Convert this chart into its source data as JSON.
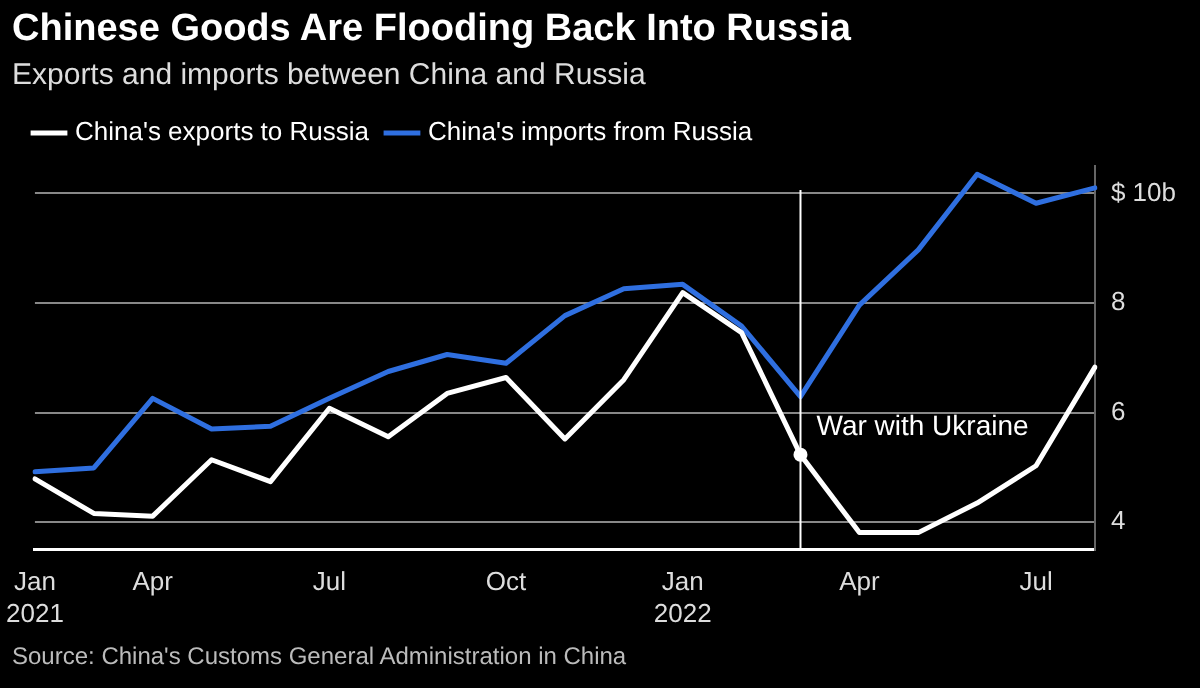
{
  "chart_data": {
    "type": "line",
    "title": "Chinese Goods Are Flooding Back Into Russia",
    "subtitle": "Exports and imports between China and Russia",
    "categories": [
      "Jan 2021",
      null,
      "Apr",
      null,
      null,
      "Jul",
      null,
      null,
      "Oct",
      null,
      null,
      "Jan 2022",
      null,
      null,
      "Apr",
      null,
      null,
      "Jul",
      null
    ],
    "series": [
      {
        "name": "China's exports to Russia",
        "color": "#ffffff",
        "values": [
          4.79,
          4.16,
          4.11,
          5.14,
          4.74,
          6.08,
          5.56,
          6.35,
          6.64,
          5.52,
          6.6,
          8.19,
          7.46,
          5.23,
          3.81,
          3.81,
          4.35,
          5.03,
          6.83
        ]
      },
      {
        "name": "China's imports from Russia",
        "color": "#2f6fe0",
        "values": [
          4.92,
          4.99,
          6.26,
          5.7,
          5.75,
          6.26,
          6.75,
          7.06,
          6.9,
          7.77,
          8.26,
          8.34,
          7.58,
          6.29,
          7.96,
          8.97,
          10.35,
          9.82,
          10.1
        ]
      }
    ],
    "ylim": [
      3.5,
      10.5
    ],
    "yticks": [
      4,
      6,
      8,
      {
        "value": 10,
        "label": "$ 10b"
      }
    ],
    "grid": "y",
    "legend": "top left",
    "marker": "none",
    "line_style": "solid",
    "annotations": [
      "War with Ukraine",
      "Source: China's Customs General Administration in China"
    ]
  }
}
